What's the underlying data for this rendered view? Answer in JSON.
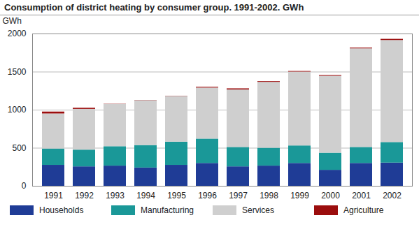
{
  "chart_data": {
    "type": "bar",
    "title": "Consumption of district heating by consumer group. 1991-2002. GWh",
    "y_label": "GWh",
    "categories": [
      "1991",
      "1992",
      "1993",
      "1994",
      "1995",
      "1996",
      "1997",
      "1998",
      "1999",
      "2000",
      "2001",
      "2002"
    ],
    "series": [
      {
        "name": "Households",
        "color": "#1f3c96",
        "values": [
          275,
          255,
          265,
          240,
          275,
          300,
          255,
          265,
          300,
          210,
          300,
          305
        ]
      },
      {
        "name": "Manufacturing",
        "color": "#1a9898",
        "values": [
          215,
          220,
          255,
          295,
          305,
          320,
          255,
          235,
          230,
          225,
          210,
          270
        ]
      },
      {
        "name": "Services",
        "color": "#cfcfcf",
        "values": [
          460,
          535,
          555,
          590,
          600,
          670,
          755,
          865,
          970,
          1010,
          1295,
          1340
        ]
      },
      {
        "name": "Agriculture",
        "color": "#9b0d0d",
        "values": [
          25,
          15,
          3,
          3,
          3,
          10,
          15,
          10,
          8,
          10,
          10,
          15
        ]
      }
    ],
    "ylim": [
      0,
      2000
    ],
    "yticks": [
      0,
      500,
      1000,
      1500,
      2000
    ],
    "stacked": true,
    "grid": true,
    "legend": "bottom"
  }
}
